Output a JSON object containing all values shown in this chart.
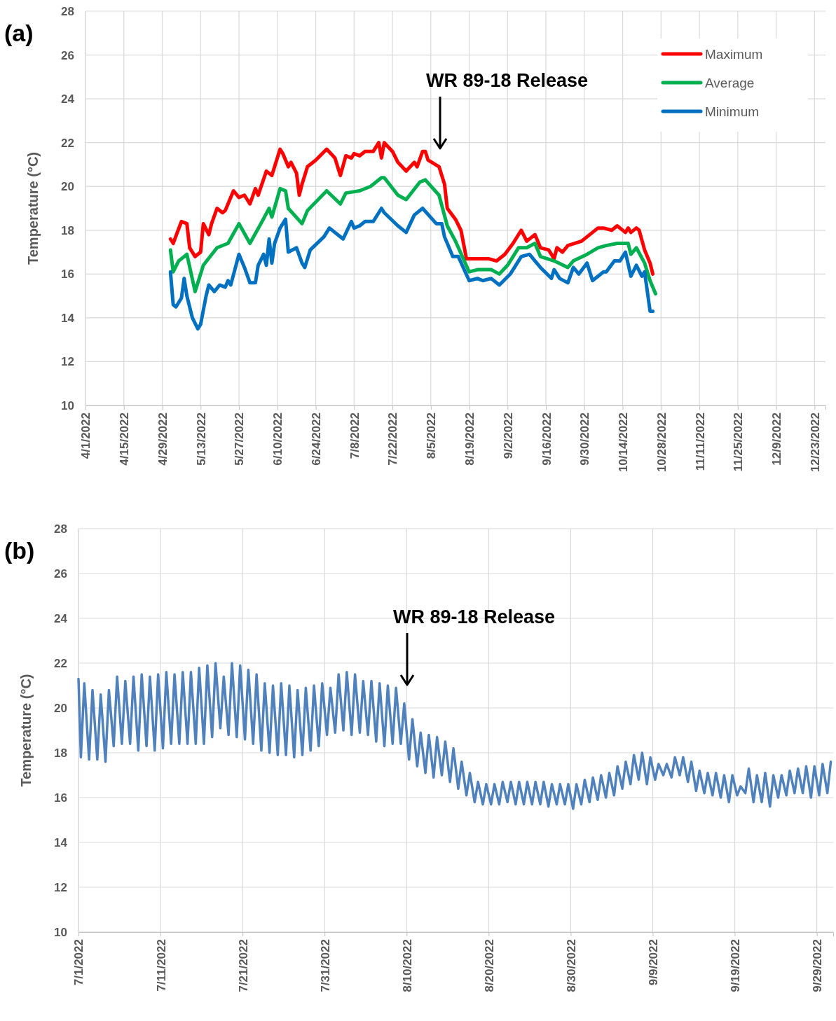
{
  "chart_data": [
    {
      "type": "line",
      "title": "(a)",
      "ylabel": "Temperature (°C)",
      "xlim": [
        "2022-04-01",
        "2022-12-27"
      ],
      "xticks": [
        {
          "value": "2022-04-01",
          "label": "4/1/2022"
        },
        {
          "value": "2022-04-15",
          "label": "4/15/2022"
        },
        {
          "value": "2022-04-29",
          "label": "4/29/2022"
        },
        {
          "value": "2022-05-13",
          "label": "5/13/2022"
        },
        {
          "value": "2022-05-27",
          "label": "5/27/2022"
        },
        {
          "value": "2022-06-10",
          "label": "6/10/2022"
        },
        {
          "value": "2022-06-24",
          "label": "6/24/2022"
        },
        {
          "value": "2022-07-08",
          "label": "7/8/2022"
        },
        {
          "value": "2022-07-22",
          "label": "7/22/2022"
        },
        {
          "value": "2022-08-05",
          "label": "8/5/2022"
        },
        {
          "value": "2022-08-19",
          "label": "8/19/2022"
        },
        {
          "value": "2022-09-02",
          "label": "9/2/2022"
        },
        {
          "value": "2022-09-16",
          "label": "9/16/2022"
        },
        {
          "value": "2022-09-30",
          "label": "9/30/2022"
        },
        {
          "value": "2022-10-14",
          "label": "10/14/2022"
        },
        {
          "value": "2022-10-28",
          "label": "10/28/2022"
        },
        {
          "value": "2022-11-11",
          "label": "11/11/2022"
        },
        {
          "value": "2022-11-25",
          "label": "11/25/2022"
        },
        {
          "value": "2022-12-09",
          "label": "12/9/2022"
        },
        {
          "value": "2022-12-23",
          "label": "12/23/2022"
        }
      ],
      "ylim": [
        10,
        28
      ],
      "yticks": [
        10,
        12,
        14,
        16,
        18,
        20,
        22,
        24,
        26,
        28
      ],
      "grid": true,
      "legend": "top right",
      "annotations": [
        "WR 89-18 Release"
      ],
      "series": [
        {
          "name": "Maximum",
          "color": "#ff0000",
          "x": [
            "2022-05-02",
            "2022-05-03",
            "2022-05-06",
            "2022-05-08",
            "2022-05-09",
            "2022-05-11",
            "2022-05-13",
            "2022-05-14",
            "2022-05-16",
            "2022-05-17",
            "2022-05-19",
            "2022-05-21",
            "2022-05-22",
            "2022-05-25",
            "2022-05-27",
            "2022-05-29",
            "2022-05-31",
            "2022-06-02",
            "2022-06-03",
            "2022-06-06",
            "2022-06-08",
            "2022-06-09",
            "2022-06-11",
            "2022-06-12",
            "2022-06-14",
            "2022-06-15",
            "2022-06-17",
            "2022-06-18",
            "2022-06-19",
            "2022-06-21",
            "2022-06-24",
            "2022-06-28",
            "2022-07-01",
            "2022-07-03",
            "2022-07-05",
            "2022-07-07",
            "2022-07-08",
            "2022-07-10",
            "2022-07-12",
            "2022-07-15",
            "2022-07-17",
            "2022-07-18",
            "2022-07-19",
            "2022-07-22",
            "2022-07-24",
            "2022-07-27",
            "2022-07-30",
            "2022-07-31",
            "2022-08-02",
            "2022-08-03",
            "2022-08-04",
            "2022-08-08",
            "2022-08-10",
            "2022-08-11",
            "2022-08-14",
            "2022-08-16",
            "2022-08-18",
            "2022-08-22",
            "2022-08-26",
            "2022-08-29",
            "2022-09-01",
            "2022-09-04",
            "2022-09-07",
            "2022-09-09",
            "2022-09-12",
            "2022-09-14",
            "2022-09-17",
            "2022-09-19",
            "2022-09-20",
            "2022-09-22",
            "2022-09-24",
            "2022-09-29",
            "2022-10-01",
            "2022-10-05",
            "2022-10-07",
            "2022-10-10",
            "2022-10-12",
            "2022-10-15",
            "2022-10-16",
            "2022-10-17",
            "2022-10-19",
            "2022-10-20",
            "2022-10-22",
            "2022-10-24",
            "2022-10-25"
          ],
          "values": [
            17.6,
            17.4,
            18.4,
            18.3,
            17.2,
            16.8,
            17.0,
            18.3,
            17.8,
            18.3,
            19.0,
            18.8,
            18.9,
            19.8,
            19.5,
            19.6,
            19.2,
            19.9,
            19.6,
            20.7,
            20.5,
            20.9,
            21.7,
            21.5,
            20.9,
            21.1,
            20.6,
            19.6,
            20.1,
            20.9,
            21.2,
            21.7,
            21.3,
            20.5,
            21.4,
            21.3,
            21.5,
            21.4,
            21.6,
            21.6,
            22.0,
            21.3,
            22.0,
            21.6,
            21.1,
            20.7,
            21.1,
            20.9,
            21.6,
            21.6,
            21.2,
            20.9,
            20.1,
            19.0,
            18.5,
            18.0,
            16.7,
            16.7,
            16.7,
            16.6,
            16.9,
            17.4,
            18.0,
            17.5,
            17.8,
            17.2,
            17.1,
            16.7,
            17.2,
            17.0,
            17.3,
            17.5,
            17.7,
            18.1,
            18.1,
            18.0,
            18.2,
            17.9,
            18.1,
            17.9,
            18.1,
            18.0,
            17.1,
            16.5,
            16.0
          ]
        },
        {
          "name": "Average",
          "color": "#00b050",
          "x": [
            "2022-05-02",
            "2022-05-03",
            "2022-05-05",
            "2022-05-08",
            "2022-05-11",
            "2022-05-14",
            "2022-05-19",
            "2022-05-23",
            "2022-05-27",
            "2022-05-31",
            "2022-06-04",
            "2022-06-07",
            "2022-06-08",
            "2022-06-11",
            "2022-06-13",
            "2022-06-14",
            "2022-06-19",
            "2022-06-21",
            "2022-06-28",
            "2022-07-03",
            "2022-07-05",
            "2022-07-10",
            "2022-07-14",
            "2022-07-18",
            "2022-07-19",
            "2022-07-24",
            "2022-07-27",
            "2022-08-01",
            "2022-08-03",
            "2022-08-08",
            "2022-08-11",
            "2022-08-14",
            "2022-08-19",
            "2022-08-22",
            "2022-08-27",
            "2022-08-30",
            "2022-09-02",
            "2022-09-06",
            "2022-09-09",
            "2022-09-12",
            "2022-09-14",
            "2022-09-19",
            "2022-09-24",
            "2022-09-26",
            "2022-10-01",
            "2022-10-05",
            "2022-10-08",
            "2022-10-12",
            "2022-10-16",
            "2022-10-17",
            "2022-10-19",
            "2022-10-22",
            "2022-10-24",
            "2022-10-26"
          ],
          "values": [
            17.1,
            16.1,
            16.6,
            16.9,
            15.2,
            16.4,
            17.2,
            17.4,
            18.3,
            17.4,
            18.3,
            19.0,
            18.6,
            19.9,
            19.8,
            19.0,
            18.3,
            18.9,
            19.8,
            19.2,
            19.7,
            19.8,
            20.0,
            20.4,
            20.4,
            19.6,
            19.4,
            20.2,
            20.3,
            19.6,
            18.2,
            17.5,
            16.1,
            16.2,
            16.2,
            16.0,
            16.4,
            17.2,
            17.2,
            17.4,
            16.8,
            16.6,
            16.3,
            16.6,
            16.9,
            17.2,
            17.3,
            17.4,
            17.4,
            16.9,
            17.2,
            16.5,
            15.7,
            15.1
          ]
        },
        {
          "name": "Minimum",
          "color": "#0070c0",
          "x": [
            "2022-05-02",
            "2022-05-03",
            "2022-05-04",
            "2022-05-06",
            "2022-05-07",
            "2022-05-08",
            "2022-05-10",
            "2022-05-12",
            "2022-05-13",
            "2022-05-15",
            "2022-05-16",
            "2022-05-18",
            "2022-05-20",
            "2022-05-22",
            "2022-05-23",
            "2022-05-24",
            "2022-05-27",
            "2022-05-29",
            "2022-05-31",
            "2022-06-02",
            "2022-06-03",
            "2022-06-05",
            "2022-06-06",
            "2022-06-07",
            "2022-06-08",
            "2022-06-09",
            "2022-06-11",
            "2022-06-13",
            "2022-06-14",
            "2022-06-17",
            "2022-06-19",
            "2022-06-20",
            "2022-06-22",
            "2022-06-27",
            "2022-06-29",
            "2022-07-04",
            "2022-07-07",
            "2022-07-08",
            "2022-07-10",
            "2022-07-12",
            "2022-07-15",
            "2022-07-18",
            "2022-07-19",
            "2022-07-24",
            "2022-07-27",
            "2022-07-30",
            "2022-08-02",
            "2022-08-07",
            "2022-08-09",
            "2022-08-10",
            "2022-08-13",
            "2022-08-15",
            "2022-08-19",
            "2022-08-22",
            "2022-08-24",
            "2022-08-27",
            "2022-08-30",
            "2022-09-03",
            "2022-09-07",
            "2022-09-10",
            "2022-09-14",
            "2022-09-18",
            "2022-09-19",
            "2022-09-21",
            "2022-09-24",
            "2022-09-26",
            "2022-09-28",
            "2022-10-01",
            "2022-10-03",
            "2022-10-07",
            "2022-10-08",
            "2022-10-11",
            "2022-10-13",
            "2022-10-15",
            "2022-10-17",
            "2022-10-19",
            "2022-10-21",
            "2022-10-22",
            "2022-10-24",
            "2022-10-25"
          ],
          "values": [
            16.1,
            14.6,
            14.5,
            14.9,
            15.8,
            15.0,
            14.0,
            13.5,
            13.7,
            15.0,
            15.5,
            15.2,
            15.5,
            15.4,
            15.7,
            15.5,
            16.9,
            16.3,
            15.6,
            15.6,
            16.4,
            16.9,
            16.4,
            17.6,
            16.5,
            17.4,
            18.1,
            18.5,
            17.0,
            17.2,
            16.5,
            16.3,
            17.1,
            17.7,
            18.1,
            17.6,
            18.4,
            18.1,
            18.2,
            18.4,
            18.4,
            19.0,
            18.8,
            18.2,
            17.9,
            18.7,
            19.0,
            18.3,
            18.3,
            17.7,
            16.8,
            16.8,
            15.7,
            15.8,
            15.7,
            15.8,
            15.5,
            16.0,
            16.8,
            16.9,
            16.3,
            15.8,
            16.2,
            15.8,
            15.6,
            16.3,
            16.0,
            16.5,
            15.7,
            16.1,
            16.1,
            16.6,
            16.6,
            17.0,
            15.9,
            16.4,
            15.9,
            16.1,
            14.3,
            14.3
          ]
        }
      ]
    },
    {
      "type": "line",
      "title": "(b)",
      "ylabel": "Temperature (°C)",
      "xlim": [
        "2022-07-01",
        "2022-10-01"
      ],
      "xticks": [
        {
          "value": "2022-07-01",
          "label": "7/1/2022"
        },
        {
          "value": "2022-07-11",
          "label": "7/11/2022"
        },
        {
          "value": "2022-07-21",
          "label": "7/21/2022"
        },
        {
          "value": "2022-07-31",
          "label": "7/31/2022"
        },
        {
          "value": "2022-08-10",
          "label": "8/10/2022"
        },
        {
          "value": "2022-08-20",
          "label": "8/20/2022"
        },
        {
          "value": "2022-08-30",
          "label": "8/30/2022"
        },
        {
          "value": "2022-09-09",
          "label": "9/9/2022"
        },
        {
          "value": "2022-09-19",
          "label": "9/19/2022"
        },
        {
          "value": "2022-09-29",
          "label": "9/29/2022"
        }
      ],
      "ylim": [
        10,
        28
      ],
      "yticks": [
        10,
        12,
        14,
        16,
        18,
        20,
        22,
        24,
        26,
        28
      ],
      "grid": true,
      "annotations": [
        "WR 89-18 Release"
      ],
      "series": [
        {
          "color": "#4f81bd",
          "x": [
            "2022-07-01T00:00",
            "2022-07-01T07:00",
            "2022-07-01T17:00",
            "2022-07-02T07:00",
            "2022-07-02T17:00",
            "2022-07-03T07:00",
            "2022-07-03T17:00",
            "2022-07-04T07:00",
            "2022-07-04T17:00",
            "2022-07-05T07:00",
            "2022-07-05T17:00",
            "2022-07-06T07:00",
            "2022-07-06T17:00",
            "2022-07-07T07:00",
            "2022-07-07T17:00",
            "2022-07-08T07:00",
            "2022-07-08T17:00",
            "2022-07-09T07:00",
            "2022-07-09T17:00",
            "2022-07-10T07:00",
            "2022-07-10T17:00",
            "2022-07-11T07:00",
            "2022-07-11T17:00",
            "2022-07-12T07:00",
            "2022-07-12T17:00",
            "2022-07-13T07:00",
            "2022-07-13T17:00",
            "2022-07-14T07:00",
            "2022-07-14T17:00",
            "2022-07-15T07:00",
            "2022-07-15T17:00",
            "2022-07-16T07:00",
            "2022-07-16T17:00",
            "2022-07-17T07:00",
            "2022-07-17T17:00",
            "2022-07-18T07:00",
            "2022-07-18T17:00",
            "2022-07-19T07:00",
            "2022-07-19T17:00",
            "2022-07-20T07:00",
            "2022-07-20T17:00",
            "2022-07-21T07:00",
            "2022-07-21T17:00",
            "2022-07-22T07:00",
            "2022-07-22T17:00",
            "2022-07-23T07:00",
            "2022-07-23T17:00",
            "2022-07-24T07:00",
            "2022-07-24T17:00",
            "2022-07-25T07:00",
            "2022-07-25T17:00",
            "2022-07-26T07:00",
            "2022-07-26T17:00",
            "2022-07-27T07:00",
            "2022-07-27T17:00",
            "2022-07-28T07:00",
            "2022-07-28T17:00",
            "2022-07-29T07:00",
            "2022-07-29T17:00",
            "2022-07-30T07:00",
            "2022-07-30T17:00",
            "2022-07-31T07:00",
            "2022-07-31T17:00",
            "2022-08-01T07:00",
            "2022-08-01T17:00",
            "2022-08-02T07:00",
            "2022-08-02T17:00",
            "2022-08-03T07:00",
            "2022-08-03T17:00",
            "2022-08-04T07:00",
            "2022-08-04T17:00",
            "2022-08-05T07:00",
            "2022-08-05T17:00",
            "2022-08-06T07:00",
            "2022-08-06T17:00",
            "2022-08-07T07:00",
            "2022-08-07T17:00",
            "2022-08-08T07:00",
            "2022-08-08T17:00",
            "2022-08-09T07:00",
            "2022-08-09T17:00",
            "2022-08-10T07:00",
            "2022-08-10T17:00",
            "2022-08-11T07:00",
            "2022-08-11T17:00",
            "2022-08-12T07:00",
            "2022-08-12T17:00",
            "2022-08-13T07:00",
            "2022-08-13T17:00",
            "2022-08-14T07:00",
            "2022-08-14T17:00",
            "2022-08-15T07:00",
            "2022-08-15T17:00",
            "2022-08-16T07:00",
            "2022-08-16T17:00",
            "2022-08-17T07:00",
            "2022-08-17T17:00",
            "2022-08-18T07:00",
            "2022-08-18T17:00",
            "2022-08-19T07:00",
            "2022-08-19T17:00",
            "2022-08-20T07:00",
            "2022-08-20T17:00",
            "2022-08-21T07:00",
            "2022-08-21T17:00",
            "2022-08-22T07:00",
            "2022-08-22T17:00",
            "2022-08-23T07:00",
            "2022-08-23T17:00",
            "2022-08-24T07:00",
            "2022-08-24T17:00",
            "2022-08-25T07:00",
            "2022-08-25T17:00",
            "2022-08-26T07:00",
            "2022-08-26T17:00",
            "2022-08-27T07:00",
            "2022-08-27T17:00",
            "2022-08-28T07:00",
            "2022-08-28T17:00",
            "2022-08-29T07:00",
            "2022-08-29T17:00",
            "2022-08-30T07:00",
            "2022-08-30T17:00",
            "2022-08-31T07:00",
            "2022-08-31T17:00",
            "2022-09-01T07:00",
            "2022-09-01T17:00",
            "2022-09-02T07:00",
            "2022-09-02T17:00",
            "2022-09-03T07:00",
            "2022-09-03T17:00",
            "2022-09-04T07:00",
            "2022-09-04T17:00",
            "2022-09-05T07:00",
            "2022-09-05T17:00",
            "2022-09-06T07:00",
            "2022-09-06T17:00",
            "2022-09-07T07:00",
            "2022-09-07T17:00",
            "2022-09-08T07:00",
            "2022-09-08T17:00",
            "2022-09-09T07:00",
            "2022-09-09T17:00",
            "2022-09-10T07:00",
            "2022-09-10T17:00",
            "2022-09-11T07:00",
            "2022-09-11T17:00",
            "2022-09-12T07:00",
            "2022-09-12T17:00",
            "2022-09-13T07:00",
            "2022-09-13T17:00",
            "2022-09-14T07:00",
            "2022-09-14T17:00",
            "2022-09-15T07:00",
            "2022-09-15T17:00",
            "2022-09-16T07:00",
            "2022-09-16T17:00",
            "2022-09-17T07:00",
            "2022-09-17T17:00",
            "2022-09-18T07:00",
            "2022-09-18T17:00",
            "2022-09-19T07:00",
            "2022-09-19T17:00",
            "2022-09-20T07:00",
            "2022-09-20T17:00",
            "2022-09-21T07:00",
            "2022-09-21T17:00",
            "2022-09-22T07:00",
            "2022-09-22T17:00",
            "2022-09-23T07:00",
            "2022-09-23T17:00",
            "2022-09-24T07:00",
            "2022-09-24T17:00",
            "2022-09-25T07:00",
            "2022-09-25T17:00",
            "2022-09-26T07:00",
            "2022-09-26T17:00",
            "2022-09-27T07:00",
            "2022-09-27T17:00",
            "2022-09-28T07:00",
            "2022-09-28T17:00",
            "2022-09-29T07:00",
            "2022-09-29T17:00",
            "2022-09-30T07:00",
            "2022-09-30T17:00"
          ],
          "values": [
            21.3,
            17.8,
            21.1,
            17.7,
            20.8,
            17.7,
            20.6,
            17.6,
            20.8,
            18.3,
            21.4,
            18.4,
            21.2,
            18.4,
            21.4,
            18.1,
            21.5,
            18.3,
            21.4,
            18.1,
            21.5,
            18.2,
            21.6,
            18.4,
            21.5,
            18.4,
            21.6,
            18.4,
            21.6,
            18.4,
            21.8,
            18.4,
            21.9,
            18.7,
            22.0,
            19.1,
            21.4,
            18.8,
            22.0,
            18.7,
            21.9,
            18.6,
            21.7,
            18.4,
            21.5,
            18.1,
            21.1,
            18.0,
            21.0,
            17.9,
            21.1,
            17.9,
            21.0,
            17.8,
            20.8,
            17.9,
            20.9,
            18.1,
            21.0,
            18.3,
            21.1,
            18.8,
            20.9,
            18.9,
            21.5,
            19.0,
            21.6,
            18.8,
            21.5,
            18.9,
            21.2,
            18.8,
            21.2,
            18.5,
            21.1,
            18.3,
            21.0,
            18.4,
            20.9,
            18.4,
            20.2,
            17.7,
            19.5,
            17.4,
            18.9,
            17.1,
            18.8,
            16.9,
            18.7,
            17.0,
            18.5,
            16.7,
            18.2,
            16.4,
            17.6,
            16.1,
            17.1,
            15.8,
            16.7,
            15.7,
            16.6,
            15.7,
            16.6,
            15.7,
            16.7,
            15.8,
            16.7,
            15.7,
            16.7,
            15.7,
            16.7,
            15.7,
            16.7,
            15.7,
            16.7,
            15.6,
            16.6,
            15.7,
            16.6,
            15.7,
            16.6,
            15.5,
            16.6,
            15.7,
            16.8,
            15.8,
            16.9,
            15.9,
            17.0,
            16.0,
            17.1,
            16.1,
            17.4,
            16.4,
            17.6,
            16.6,
            17.9,
            16.8,
            18.0,
            16.6,
            17.8,
            16.8,
            17.5,
            17.0,
            17.5,
            16.9,
            17.8,
            17.0,
            17.8,
            16.7,
            17.6,
            16.3,
            17.2,
            16.2,
            17.1,
            16.1,
            17.1,
            16.0,
            17.0,
            15.8,
            17.0,
            16.1,
            16.5,
            16.2,
            17.3,
            15.8,
            17.0,
            15.8,
            17.1,
            15.6,
            17.0,
            16.0,
            17.0,
            16.1,
            17.2,
            16.2,
            17.3,
            16.2,
            17.4,
            16.0,
            17.4,
            16.1,
            17.5,
            16.2,
            17.6
          ]
        }
      ]
    }
  ]
}
